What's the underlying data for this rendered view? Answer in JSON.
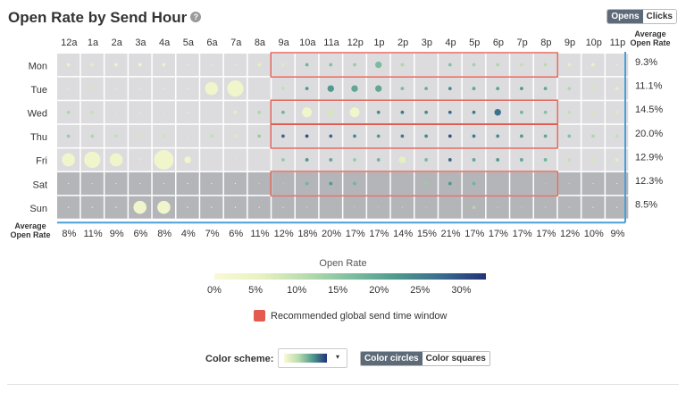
{
  "header": {
    "title": "Open Rate by Send Hour",
    "help_icon": "?"
  },
  "metric_toggle": {
    "options": [
      "Opens",
      "Clicks"
    ],
    "active": "Opens"
  },
  "chart_data": {
    "type": "heatmap",
    "title": "Open Rate by Send Hour",
    "hours": [
      "12a",
      "1a",
      "2a",
      "3a",
      "4a",
      "5a",
      "6a",
      "7a",
      "8a",
      "9a",
      "10a",
      "11a",
      "12p",
      "1p",
      "2p",
      "3p",
      "4p",
      "5p",
      "6p",
      "7p",
      "8p",
      "9p",
      "10p",
      "11p"
    ],
    "days": [
      "Mon",
      "Tue",
      "Wed",
      "Thu",
      "Fri",
      "Sat",
      "Sun"
    ],
    "row_avg_label": "Average Open Rate",
    "col_avg_label": "Average Open Rate",
    "row_averages": [
      "9.3%",
      "11.1%",
      "14.5%",
      "20.0%",
      "12.9%",
      "12.3%",
      "8.5%"
    ],
    "col_averages": [
      "8%",
      "11%",
      "9%",
      "6%",
      "8%",
      "4%",
      "7%",
      "6%",
      "11%",
      "12%",
      "18%",
      "20%",
      "17%",
      "17%",
      "14%",
      "15%",
      "21%",
      "17%",
      "17%",
      "17%",
      "17%",
      "12%",
      "10%",
      "9%"
    ],
    "rates": [
      [
        5,
        6,
        4,
        3,
        4,
        2,
        4,
        3,
        6,
        7,
        18,
        16,
        14,
        17,
        12,
        8,
        16,
        13,
        12,
        10,
        11,
        6,
        5,
        4
      ],
      [
        4,
        8,
        4,
        3,
        3,
        2,
        5,
        6,
        8,
        10,
        22,
        22,
        20,
        20,
        17,
        19,
        24,
        20,
        21,
        22,
        20,
        12,
        8,
        6
      ],
      [
        12,
        10,
        6,
        5,
        6,
        3,
        7,
        6,
        12,
        18,
        6,
        8,
        6,
        24,
        26,
        24,
        28,
        26,
        27,
        18,
        16,
        10,
        8,
        7
      ],
      [
        14,
        12,
        10,
        8,
        9,
        5,
        10,
        7,
        14,
        28,
        30,
        28,
        24,
        22,
        26,
        24,
        30,
        26,
        24,
        22,
        20,
        16,
        12,
        10
      ],
      [
        4,
        4,
        4,
        3,
        4,
        3,
        6,
        5,
        10,
        14,
        22,
        20,
        14,
        18,
        6,
        17,
        28,
        20,
        22,
        20,
        18,
        10,
        8,
        6
      ],
      [
        6,
        8,
        6,
        5,
        6,
        3,
        6,
        5,
        10,
        12,
        18,
        22,
        18,
        16,
        14,
        14,
        22,
        18,
        16,
        14,
        12,
        10,
        8,
        6
      ],
      [
        5,
        4,
        3,
        4,
        3,
        2,
        4,
        3,
        6,
        8,
        10,
        14,
        12,
        12,
        10,
        12,
        14,
        12,
        10,
        12,
        10,
        8,
        6,
        5
      ]
    ],
    "volumes": [
      [
        1,
        1,
        1,
        1,
        1,
        0,
        0,
        0,
        1,
        1,
        1,
        1,
        1,
        2,
        1,
        0,
        1,
        1,
        1,
        1,
        1,
        1,
        1,
        0
      ],
      [
        0,
        1,
        0,
        0,
        0,
        0,
        4,
        5,
        0,
        1,
        1,
        2,
        2,
        2,
        1,
        1,
        1,
        1,
        1,
        1,
        1,
        1,
        1,
        1
      ],
      [
        1,
        1,
        0,
        0,
        0,
        0,
        0,
        1,
        1,
        1,
        3,
        2,
        3,
        1,
        1,
        1,
        1,
        1,
        2,
        1,
        1,
        1,
        1,
        1
      ],
      [
        1,
        1,
        1,
        1,
        1,
        0,
        1,
        1,
        1,
        1,
        1,
        1,
        1,
        1,
        1,
        1,
        1,
        1,
        1,
        1,
        1,
        1,
        1,
        1
      ],
      [
        4,
        5,
        4,
        0,
        6,
        2,
        0,
        0,
        0,
        1,
        1,
        1,
        1,
        1,
        2,
        1,
        1,
        1,
        1,
        1,
        1,
        1,
        1,
        1
      ],
      [
        0,
        0,
        0,
        0,
        0,
        0,
        0,
        0,
        0,
        0,
        1,
        1,
        1,
        0,
        0,
        1,
        1,
        1,
        0,
        0,
        0,
        0,
        0,
        0
      ],
      [
        0,
        0,
        0,
        4,
        4,
        0,
        0,
        0,
        0,
        0,
        0,
        0,
        0,
        0,
        0,
        0,
        0,
        1,
        0,
        0,
        0,
        0,
        0,
        0
      ]
    ],
    "recommended_windows": [
      {
        "day": "Mon",
        "from": "9a",
        "to": "8p"
      },
      {
        "day": "Wed",
        "from": "9a",
        "to": "8p"
      },
      {
        "day": "Thu",
        "from": "9a",
        "to": "8p"
      },
      {
        "day": "Sat",
        "from": "9a",
        "to": "8p"
      }
    ],
    "shaded_days": [
      "Sat",
      "Sun"
    ],
    "legend": {
      "title": "Open Rate",
      "ticks": [
        "0%",
        "5%",
        "10%",
        "15%",
        "20%",
        "25%",
        "30%"
      ],
      "min": 0,
      "max": 33
    },
    "colors": {
      "gradient": [
        "#fbf8d6",
        "#e8f2c1",
        "#b9dcae",
        "#7fbfa0",
        "#4f9a8d",
        "#3a6d8f",
        "#23337a"
      ],
      "weekday_cell": "#dcdcde",
      "weekend_cell": "#b3b5b9",
      "recommended_border": "#e35b4f",
      "axis_line": "#4a9fd8"
    }
  },
  "recommended": {
    "label": "Recommended global send time window",
    "color": "#e35b4f"
  },
  "color_scheme": {
    "label": "Color scheme:",
    "caret": "▾"
  },
  "color_mode": {
    "options": [
      "Color circles",
      "Color squares"
    ],
    "active": "Color circles"
  }
}
